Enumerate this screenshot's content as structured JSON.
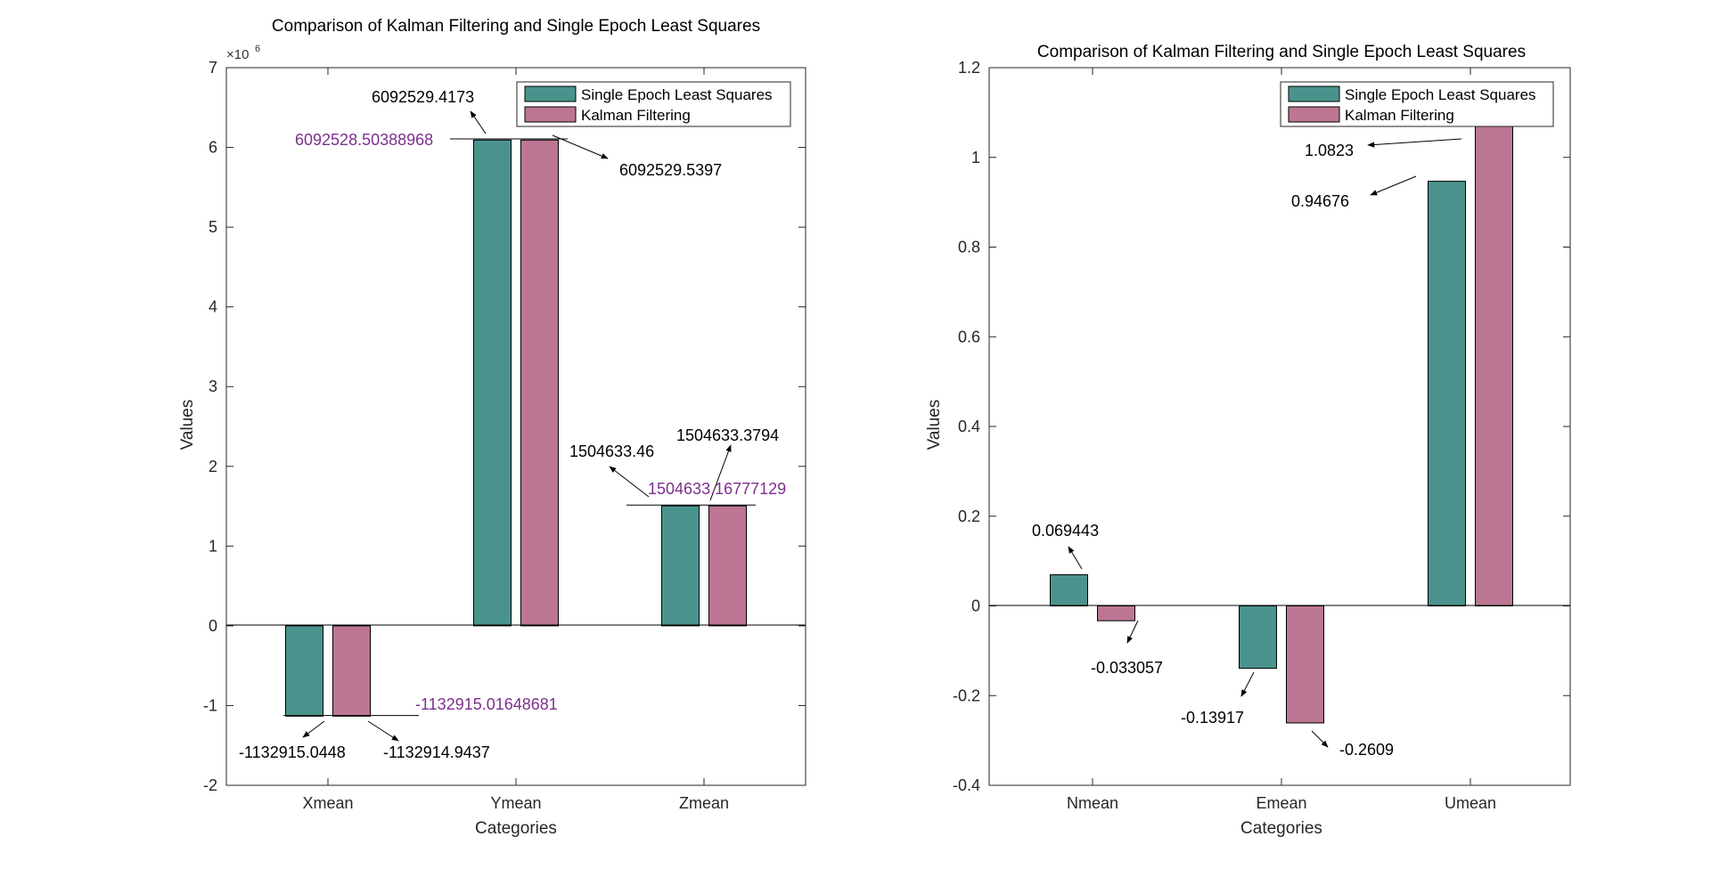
{
  "chart_data": [
    {
      "type": "bar",
      "title": "Comparison of Kalman Filtering and Single Epoch Least Squares",
      "xlabel": "Categories",
      "ylabel": "Values",
      "exponent_label": "×10",
      "exponent_power": "6",
      "ylim": [
        -2000000,
        7000000
      ],
      "yticks": [
        -2000000,
        -1000000,
        0,
        1000000,
        2000000,
        3000000,
        4000000,
        5000000,
        6000000,
        7000000
      ],
      "ytick_labels": [
        "-2",
        "-1",
        "0",
        "1",
        "2",
        "3",
        "4",
        "5",
        "6",
        "7"
      ],
      "categories": [
        "Xmean",
        "Ymean",
        "Zmean"
      ],
      "series": [
        {
          "name": "Single Epoch Least Squares",
          "color": "#4a938c",
          "values": [
            -1132915.0448,
            6092529.4173,
            1504633.46
          ]
        },
        {
          "name": "Kalman Filtering",
          "color": "#bc7693",
          "values": [
            -1132914.9437,
            6092529.5397,
            1504633.3794
          ]
        }
      ],
      "annotations": [
        {
          "text": "-1132915.0448",
          "color": "#000000"
        },
        {
          "text": "-1132914.9437",
          "color": "#000000"
        },
        {
          "text": "-1132915.01648681",
          "color": "#7e2f8e"
        },
        {
          "text": "6092529.4173",
          "color": "#000000"
        },
        {
          "text": "6092529.5397",
          "color": "#000000"
        },
        {
          "text": "6092528.50388968",
          "color": "#7e2f8e"
        },
        {
          "text": "1504633.46",
          "color": "#000000"
        },
        {
          "text": "1504633.3794",
          "color": "#000000"
        },
        {
          "text": "1504633.16777129",
          "color": "#7e2f8e"
        }
      ],
      "legend_position": "top-right",
      "grid": false
    },
    {
      "type": "bar",
      "title": "Comparison of Kalman Filtering and Single Epoch Least Squares",
      "xlabel": "Categories",
      "ylabel": "Values",
      "ylim": [
        -0.4,
        1.2
      ],
      "yticks": [
        -0.4,
        -0.2,
        0,
        0.2,
        0.4,
        0.6,
        0.8,
        1,
        1.2
      ],
      "ytick_labels": [
        "-0.4",
        "-0.2",
        "0",
        "0.2",
        "0.4",
        "0.6",
        "0.8",
        "1",
        "1.2"
      ],
      "categories": [
        "Nmean",
        "Emean",
        "Umean"
      ],
      "series": [
        {
          "name": "Single Epoch Least Squares",
          "color": "#4a938c",
          "values": [
            0.069443,
            -0.13917,
            0.94676
          ]
        },
        {
          "name": "Kalman Filtering",
          "color": "#bc7693",
          "values": [
            -0.033057,
            -0.2609,
            1.0823
          ]
        }
      ],
      "annotations": [
        {
          "text": "0.069443",
          "color": "#000000"
        },
        {
          "text": "-0.033057",
          "color": "#000000"
        },
        {
          "text": "-0.13917",
          "color": "#000000"
        },
        {
          "text": "-0.2609",
          "color": "#000000"
        },
        {
          "text": "1.0823",
          "color": "#000000"
        },
        {
          "text": "0.94676",
          "color": "#000000"
        }
      ],
      "legend_position": "top-right",
      "grid": false
    }
  ]
}
